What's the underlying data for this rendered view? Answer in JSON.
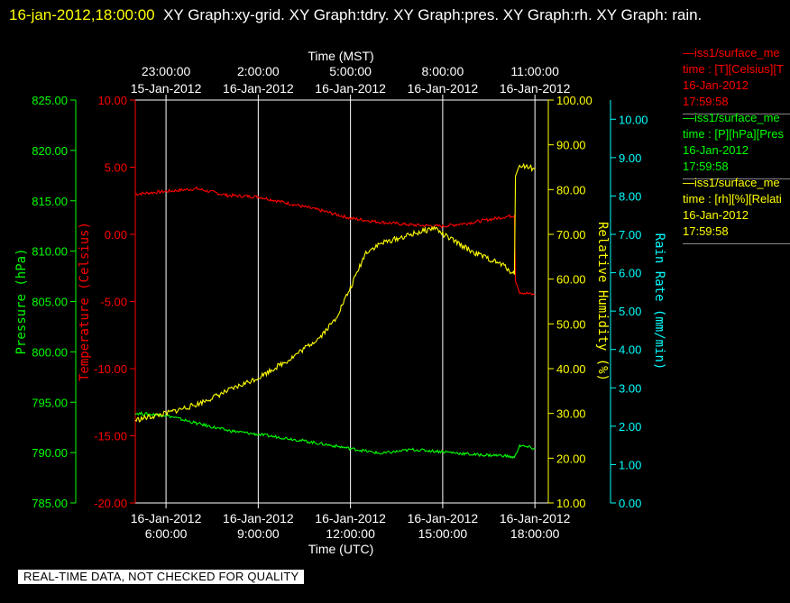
{
  "header": {
    "timestamp": "16-jan-2012,18:00:00",
    "title": "XY Graph:xy-grid.  XY Graph:tdry.  XY Graph:pres.  XY Graph:rh.  XY Graph: rain."
  },
  "footer": {
    "notice": "REAL-TIME DATA, NOT CHECKED FOR QUALITY"
  },
  "legend": [
    {
      "line1": "—iss1/surface_me",
      "line2": "time : [T][Celsius][T",
      "line3": "16-Jan-2012",
      "line4": "17:59:58",
      "color": "#ff0000"
    },
    {
      "line1": "—iss1/surface_me",
      "line2": "time : [P][hPa][Pres",
      "line3": "16-Jan-2012",
      "line4": "17:59:58",
      "color": "#00ff00"
    },
    {
      "line1": "—iss1/surface_me",
      "line2": "time : [rh][%][Relati",
      "line3": "16-Jan-2012",
      "line4": "17:59:58",
      "color": "#ffff00"
    }
  ],
  "chart_data": {
    "type": "line",
    "title": "",
    "grid": true,
    "x_bottom": {
      "label": "Time (UTC)",
      "range": [
        "2012-01-16 05:00",
        "2012-01-16 18:05"
      ],
      "ticks": [
        {
          "t": "2012-01-16 06:00",
          "date": "16-Jan-2012",
          "time": "6:00:00"
        },
        {
          "t": "2012-01-16 09:00",
          "date": "16-Jan-2012",
          "time": "9:00:00"
        },
        {
          "t": "2012-01-16 12:00",
          "date": "16-Jan-2012",
          "time": "12:00:00"
        },
        {
          "t": "2012-01-16 15:00",
          "date": "16-Jan-2012",
          "time": "15:00:00"
        },
        {
          "t": "2012-01-16 18:00",
          "date": "16-Jan-2012",
          "time": "18:00:00"
        }
      ]
    },
    "x_top": {
      "label": "Time (MST)",
      "ticks": [
        {
          "time": "23:00:00",
          "date": "15-Jan-2012"
        },
        {
          "time": "2:00:00",
          "date": "16-Jan-2012"
        },
        {
          "time": "5:00:00",
          "date": "16-Jan-2012"
        },
        {
          "time": "8:00:00",
          "date": "16-Jan-2012"
        },
        {
          "time": "11:00:00",
          "date": "16-Jan-2012"
        }
      ]
    },
    "axes": [
      {
        "id": "pres",
        "label": "Pressure (hPa)",
        "color": "#00ff00",
        "range": [
          785,
          825
        ],
        "ticks": [
          "785.00",
          "790.00",
          "795.00",
          "800.00",
          "805.00",
          "810.00",
          "815.00",
          "820.00",
          "825.00"
        ]
      },
      {
        "id": "tdry",
        "label": "Temperature (Celsius)",
        "color": "#ff0000",
        "range": [
          -20,
          10
        ],
        "ticks": [
          "-20.00",
          "-15.00",
          "-10.00",
          "-5.00",
          "0.00",
          "5.00",
          "10.00"
        ]
      },
      {
        "id": "rh",
        "label": "Relative Humidity (%)",
        "color": "#ffff00",
        "range": [
          10,
          100
        ],
        "ticks": [
          "10.00",
          "20.00",
          "30.00",
          "40.00",
          "50.00",
          "60.00",
          "70.00",
          "80.00",
          "90.00",
          "100.00"
        ]
      },
      {
        "id": "rain",
        "label": "Rain Rate (mm/min)",
        "color": "#00ffff",
        "range": [
          0,
          10.5
        ],
        "ticks": [
          "0.00",
          "1.00",
          "2.00",
          "3.00",
          "4.00",
          "5.00",
          "6.00",
          "7.00",
          "8.00",
          "9.00",
          "10.00"
        ]
      }
    ],
    "series": [
      {
        "axis": "tdry",
        "color": "#ff0000",
        "x": [
          "2012-01-16 05:00",
          "2012-01-16 06:00",
          "2012-01-16 07:00",
          "2012-01-16 08:00",
          "2012-01-16 09:00",
          "2012-01-16 10:00",
          "2012-01-16 11:00",
          "2012-01-16 12:00",
          "2012-01-16 13:00",
          "2012-01-16 14:00",
          "2012-01-16 15:00",
          "2012-01-16 16:00",
          "2012-01-16 17:00",
          "2012-01-16 17:20",
          "2012-01-16 17:22",
          "2012-01-16 17:30",
          "2012-01-16 18:00"
        ],
        "y": [
          3.0,
          3.2,
          3.4,
          2.9,
          2.8,
          2.3,
          1.8,
          1.2,
          0.9,
          0.7,
          0.6,
          0.9,
          1.3,
          1.4,
          -3.5,
          -4.3,
          -4.5
        ]
      },
      {
        "axis": "pres",
        "color": "#00ff00",
        "x": [
          "2012-01-16 05:00",
          "2012-01-16 06:00",
          "2012-01-16 07:00",
          "2012-01-16 08:00",
          "2012-01-16 09:00",
          "2012-01-16 10:00",
          "2012-01-16 11:00",
          "2012-01-16 12:00",
          "2012-01-16 13:00",
          "2012-01-16 14:00",
          "2012-01-16 15:00",
          "2012-01-16 16:00",
          "2012-01-16 17:00",
          "2012-01-16 17:20",
          "2012-01-16 17:30",
          "2012-01-16 18:00"
        ],
        "y": [
          793.9,
          793.7,
          792.9,
          792.2,
          791.8,
          791.4,
          790.9,
          790.4,
          789.9,
          790.3,
          790.1,
          789.8,
          789.7,
          789.5,
          790.7,
          790.4
        ]
      },
      {
        "axis": "rh",
        "color": "#ffff00",
        "x": [
          "2012-01-16 05:00",
          "2012-01-16 06:00",
          "2012-01-16 07:00",
          "2012-01-16 08:00",
          "2012-01-16 09:00",
          "2012-01-16 10:00",
          "2012-01-16 11:00",
          "2012-01-16 11:30",
          "2012-01-16 12:00",
          "2012-01-16 12:30",
          "2012-01-16 13:00",
          "2012-01-16 14:00",
          "2012-01-16 14:45",
          "2012-01-16 15:00",
          "2012-01-16 16:00",
          "2012-01-16 17:00",
          "2012-01-16 17:20",
          "2012-01-16 17:22",
          "2012-01-16 17:30",
          "2012-01-16 17:50",
          "2012-01-16 18:00"
        ],
        "y": [
          28.5,
          30,
          32,
          35,
          38,
          42,
          47,
          51,
          58,
          66,
          68,
          70,
          71.5,
          70,
          66,
          63,
          61,
          83,
          85.5,
          85,
          84.5
        ]
      }
    ]
  }
}
